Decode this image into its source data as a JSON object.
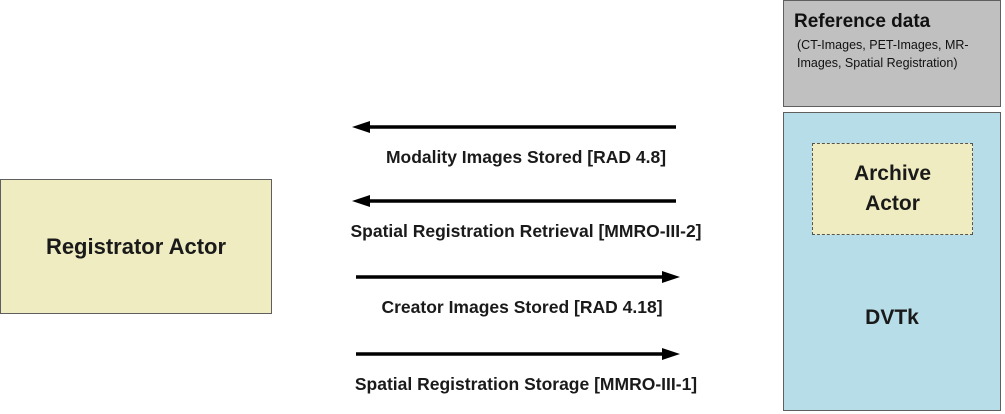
{
  "registrator": {
    "label": "Registrator Actor"
  },
  "reference_data": {
    "title": "Reference data",
    "subtitle": "(CT-Images, PET-Images, MR-Images, Spatial Registration)"
  },
  "dvtk": {
    "label": "DVTk",
    "archive_line1": "Archive",
    "archive_line2": "Actor"
  },
  "messages": [
    {
      "label": "Modality Images Stored [RAD 4.8]",
      "direction": "left"
    },
    {
      "label": "Spatial Registration Retrieval [MMRO-III-2]",
      "direction": "left"
    },
    {
      "label": "Creator Images Stored [RAD 4.18]",
      "direction": "right"
    },
    {
      "label": "Spatial Registration Storage [MMRO-III-1]",
      "direction": "right"
    }
  ],
  "colors": {
    "actor_fill": "#eeecc0",
    "reference_fill": "#c0c0c0",
    "dvtk_fill": "#b6dde8",
    "arrow": "#000000"
  }
}
